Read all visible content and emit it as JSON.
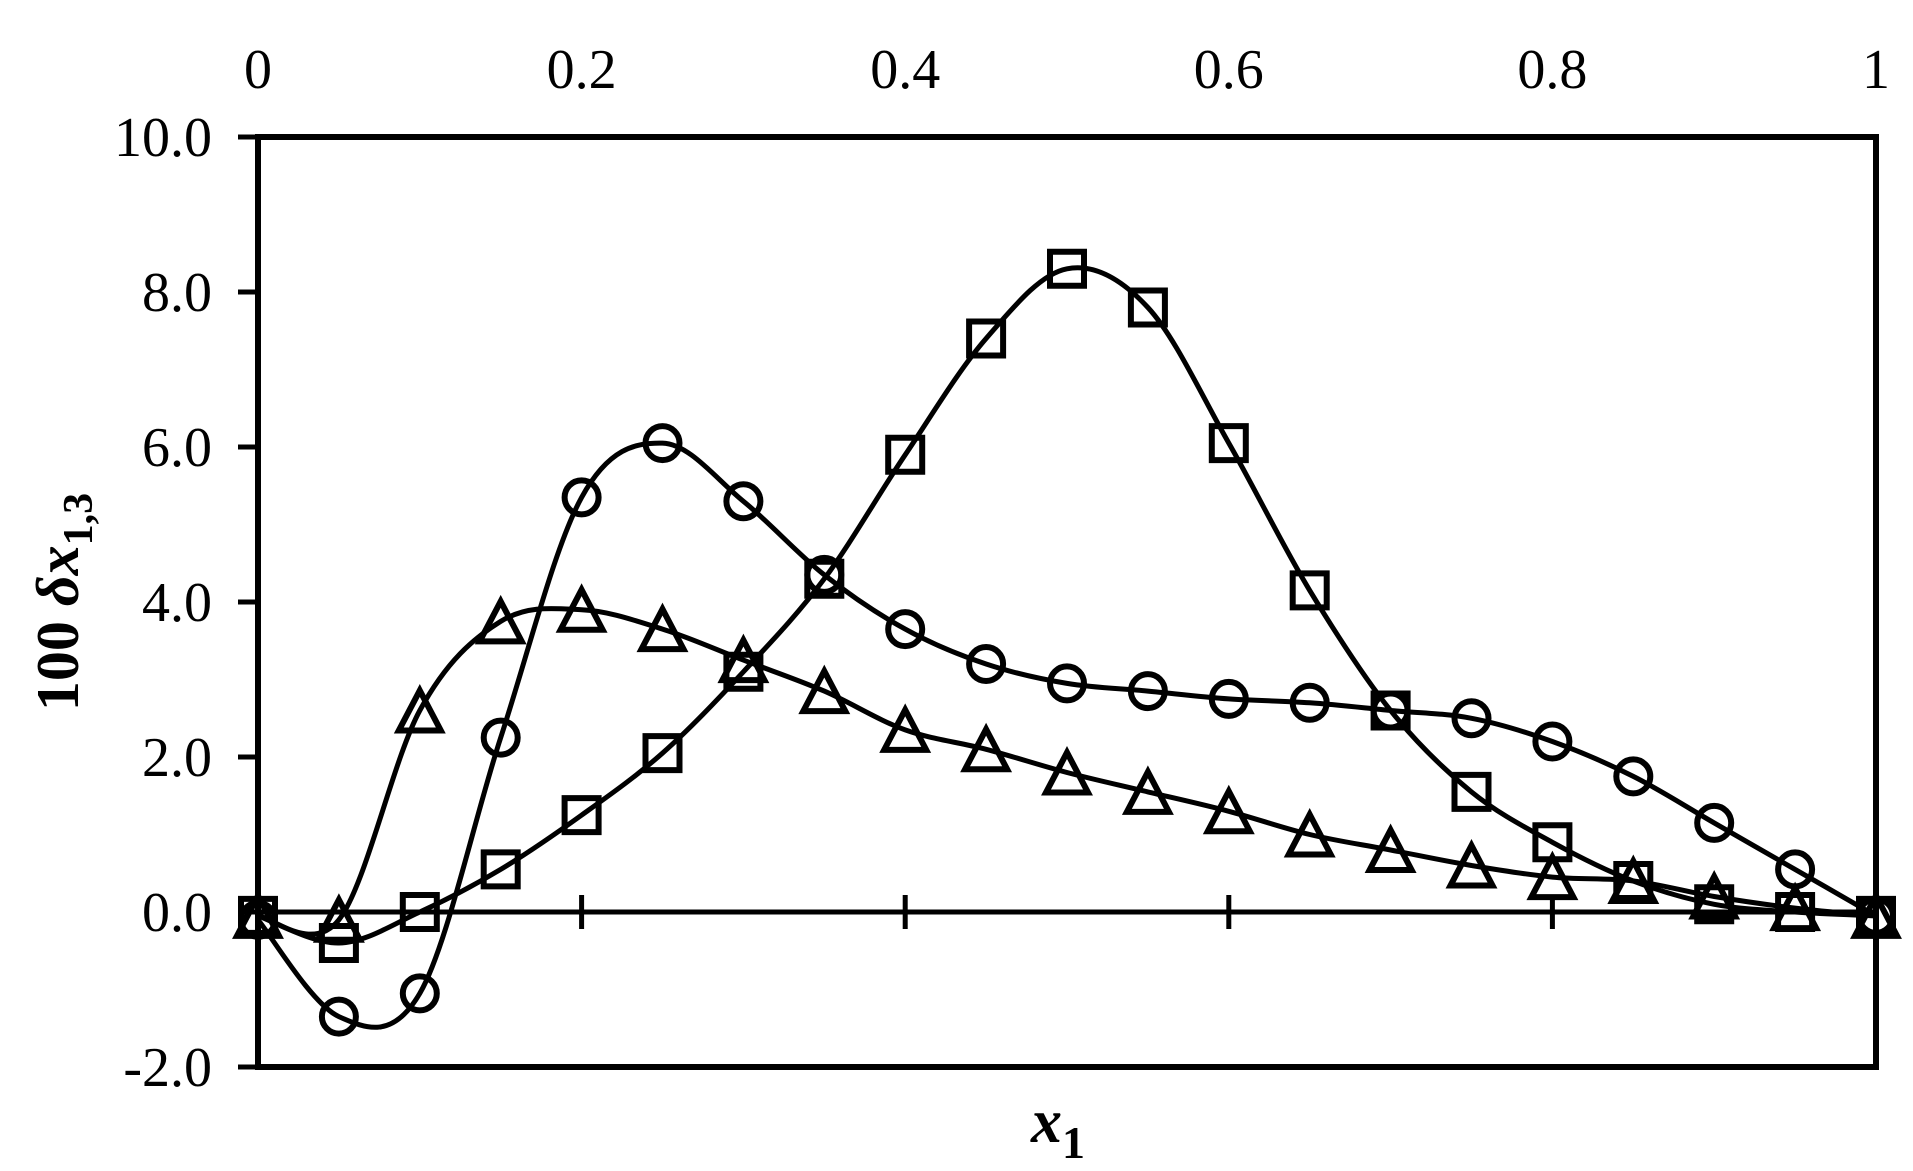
{
  "chart_data": {
    "type": "line",
    "title": "",
    "xlabel": "x1",
    "ylabel": "100 dx1,3",
    "x_axis_title": {
      "base": "x",
      "subscript": "1"
    },
    "y_axis_title": {
      "prefix": "100 ",
      "italic_part": "δx",
      "subscript": "1,3"
    },
    "xlim": [
      0,
      1
    ],
    "ylim": [
      -2,
      10
    ],
    "grid": false,
    "legend": null,
    "x_ticks": {
      "values": [
        0,
        0.2,
        0.4,
        0.6,
        0.8,
        1
      ],
      "labels": [
        "0",
        "0.2",
        "0.4",
        "0.6",
        "0.8",
        "1"
      ],
      "label_position": "top",
      "tick_position": "zero-line"
    },
    "y_ticks": {
      "values": [
        10,
        8,
        6,
        4,
        2,
        0,
        -2
      ],
      "labels": [
        "10.0",
        "8.0",
        "6.0",
        "4.0",
        "2.0",
        "0.0",
        "-2.0"
      ],
      "label_position": "left"
    },
    "zero_line": true,
    "x": [
      0,
      0.05,
      0.1,
      0.15,
      0.2,
      0.25,
      0.3,
      0.35,
      0.4,
      0.45,
      0.5,
      0.55,
      0.6,
      0.65,
      0.7,
      0.75,
      0.8,
      0.85,
      0.9,
      0.95,
      1.0
    ],
    "series": [
      {
        "name": "square-series",
        "marker": "square",
        "values": [
          -0.05,
          -0.4,
          0.0,
          0.55,
          1.25,
          2.05,
          3.1,
          4.3,
          5.9,
          7.4,
          8.3,
          7.8,
          6.05,
          4.15,
          2.6,
          1.55,
          0.9,
          0.4,
          0.1,
          0.0,
          -0.05
        ]
      },
      {
        "name": "circle-series",
        "marker": "circle",
        "values": [
          -0.1,
          -1.35,
          -1.05,
          2.25,
          5.35,
          6.05,
          5.3,
          4.35,
          3.65,
          3.2,
          2.95,
          2.85,
          2.75,
          2.7,
          2.6,
          2.5,
          2.2,
          1.75,
          1.15,
          0.55,
          -0.05
        ]
      },
      {
        "name": "triangle-series",
        "marker": "triangle",
        "values": [
          -0.05,
          -0.1,
          2.6,
          3.75,
          3.9,
          3.65,
          3.25,
          2.85,
          2.35,
          2.1,
          1.8,
          1.55,
          1.3,
          1.0,
          0.8,
          0.6,
          0.45,
          0.4,
          0.2,
          0.05,
          -0.05
        ]
      }
    ],
    "colors": {
      "line": "#000000",
      "background": "#ffffff"
    },
    "line_style": "smooth"
  }
}
